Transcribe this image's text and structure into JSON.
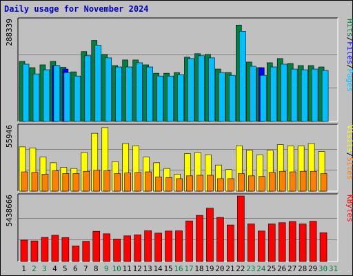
{
  "title": "Daily usage for November 2024",
  "colors": {
    "hits": "#008040",
    "files": "#0000ff",
    "pages": "#00c0ff",
    "visits": "#ffff00",
    "sites": "#ff8000",
    "kbytes": "#ff0000",
    "title": "#0000c0",
    "weekday_label": "#000000",
    "weekend_label": "#008040"
  },
  "chart_data": [
    {
      "type": "bar",
      "panel": "hits-files-pages",
      "ymax_label": "288339",
      "ymax": 288339,
      "right_label": [
        "Pages",
        "/",
        "Files",
        "/",
        "Hits"
      ],
      "right_label_colors": [
        "#00c0ff",
        "#000000",
        "#0000ff",
        "#000000",
        "#008040"
      ],
      "categories": [
        "1",
        "2",
        "3",
        "4",
        "5",
        "6",
        "7",
        "8",
        "9",
        "10",
        "11",
        "12",
        "13",
        "14",
        "15",
        "16",
        "17",
        "18",
        "19",
        "20",
        "21",
        "22",
        "23",
        "24",
        "25",
        "26",
        "27",
        "28",
        "29",
        "30",
        "31"
      ],
      "series": [
        {
          "key": "hits",
          "values": [
            172000,
            154000,
            162000,
            172000,
            155000,
            142000,
            200000,
            232000,
            192000,
            160000,
            176000,
            176000,
            162000,
            138000,
            138000,
            140000,
            184000,
            194000,
            192000,
            150000,
            140000,
            276000,
            170000,
            154000,
            168000,
            180000,
            166000,
            160000,
            160000,
            156000,
            0
          ]
        },
        {
          "key": "files",
          "values": [
            0,
            0,
            0,
            160000,
            150000,
            0,
            0,
            0,
            0,
            0,
            0,
            0,
            0,
            0,
            0,
            0,
            0,
            0,
            0,
            0,
            0,
            0,
            0,
            154000,
            0,
            0,
            0,
            0,
            0,
            0,
            0
          ]
        },
        {
          "key": "pages",
          "values": [
            164000,
            136000,
            148000,
            160000,
            140000,
            130000,
            188000,
            218000,
            182000,
            156000,
            156000,
            168000,
            156000,
            130000,
            130000,
            134000,
            180000,
            188000,
            182000,
            140000,
            132000,
            258000,
            158000,
            132000,
            156000,
            164000,
            150000,
            148000,
            150000,
            146000,
            0
          ]
        }
      ]
    },
    {
      "type": "bar",
      "panel": "visits-sites",
      "ymax_label": "55946",
      "ymax": 55946,
      "right_label": [
        "Sites",
        "/",
        "Visits"
      ],
      "right_label_colors": [
        "#ff8000",
        "#000000",
        "#ffff00"
      ],
      "categories": [
        "1",
        "2",
        "3",
        "4",
        "5",
        "6",
        "7",
        "8",
        "9",
        "10",
        "11",
        "12",
        "13",
        "14",
        "15",
        "16",
        "17",
        "18",
        "19",
        "20",
        "21",
        "22",
        "23",
        "24",
        "25",
        "26",
        "27",
        "28",
        "29",
        "30",
        "31"
      ],
      "series": [
        {
          "key": "visits",
          "values": [
            39000,
            38000,
            30000,
            25000,
            21000,
            20000,
            34000,
            51000,
            56000,
            26000,
            42000,
            40000,
            30000,
            25000,
            20000,
            15000,
            33000,
            34000,
            32000,
            23000,
            19000,
            40000,
            36000,
            32000,
            36000,
            41000,
            40000,
            40000,
            42000,
            35000,
            0
          ]
        },
        {
          "key": "sites",
          "values": [
            17000,
            16500,
            15000,
            18000,
            15500,
            15500,
            17500,
            18500,
            18000,
            15500,
            16000,
            16500,
            17000,
            12500,
            12000,
            11000,
            13500,
            14000,
            14000,
            11000,
            11000,
            15500,
            13500,
            13000,
            16500,
            17500,
            17000,
            17500,
            17500,
            15500,
            0
          ]
        }
      ]
    },
    {
      "type": "bar",
      "panel": "kbytes",
      "ymax_label": "5438666",
      "ymax": 5438666,
      "right_label": [
        "KBytes"
      ],
      "right_label_colors": [
        "#ff0000"
      ],
      "categories": [
        "1",
        "2",
        "3",
        "4",
        "5",
        "6",
        "7",
        "8",
        "9",
        "10",
        "11",
        "12",
        "13",
        "14",
        "15",
        "16",
        "17",
        "18",
        "19",
        "20",
        "21",
        "22",
        "23",
        "24",
        "25",
        "26",
        "27",
        "28",
        "29",
        "30",
        "31"
      ],
      "series": [
        {
          "key": "kbytes",
          "values": [
            1780000,
            1710000,
            2000000,
            2180000,
            1990000,
            1300000,
            1680000,
            2510000,
            2300000,
            1870000,
            2130000,
            2220000,
            2560000,
            2360000,
            2530000,
            2550000,
            3370000,
            3830000,
            4430000,
            3660000,
            3030000,
            5438666,
            3120000,
            2530000,
            3120000,
            3220000,
            3320000,
            3120000,
            3340000,
            2390000,
            0
          ]
        }
      ]
    }
  ],
  "weekend_days": [
    "2",
    "3",
    "9",
    "10",
    "16",
    "17",
    "23",
    "24",
    "30",
    "31"
  ]
}
